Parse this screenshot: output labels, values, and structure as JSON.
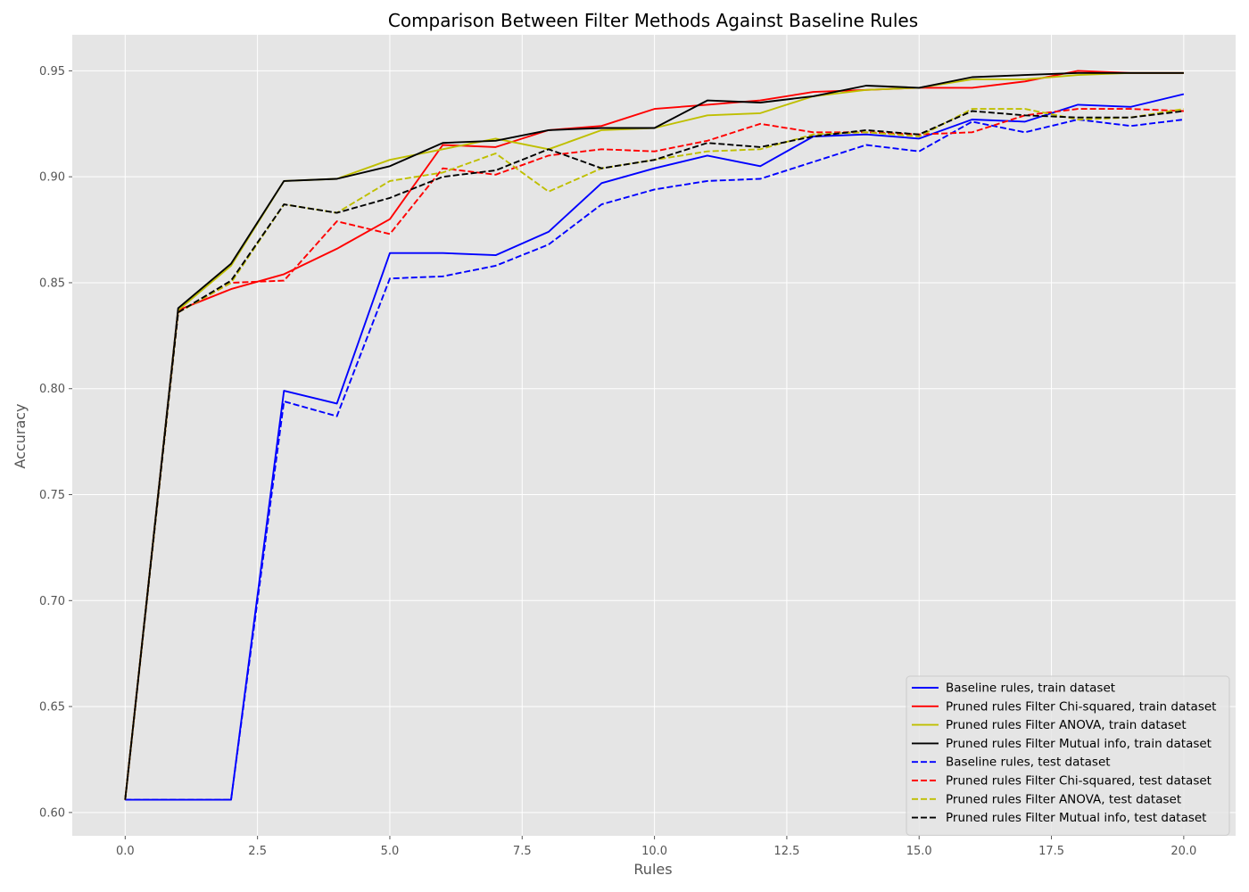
{
  "chart_data": {
    "type": "line",
    "title": "Comparison Between Filter Methods Against Baseline Rules",
    "xlabel": "Rules",
    "ylabel": "Accuracy",
    "xlim": [
      -1,
      20.98
    ],
    "ylim": [
      0.589,
      0.967
    ],
    "xticks": [
      "0.0",
      "2.5",
      "5.0",
      "7.5",
      "10.0",
      "12.5",
      "15.0",
      "17.5",
      "20.0"
    ],
    "yticks": [
      "0.60",
      "0.65",
      "0.70",
      "0.75",
      "0.80",
      "0.85",
      "0.90",
      "0.95"
    ],
    "grid": true,
    "legend_position": "lower-right",
    "x": [
      0,
      1,
      2,
      3,
      4,
      5,
      6,
      7,
      8,
      9,
      10,
      11,
      12,
      13,
      14,
      15,
      16,
      17,
      18,
      19,
      20
    ],
    "series": [
      {
        "name": "Baseline rules, train dataset",
        "color": "#0000ff",
        "dash": "solid",
        "values": [
          0.606,
          0.606,
          0.606,
          0.799,
          0.793,
          0.864,
          0.864,
          0.863,
          0.874,
          0.897,
          0.904,
          0.91,
          0.905,
          0.919,
          0.92,
          0.918,
          0.927,
          0.926,
          0.934,
          0.933,
          0.939
        ]
      },
      {
        "name": "Pruned rules Filter Chi-squared, train dataset",
        "color": "#ff0000",
        "dash": "solid",
        "values": [
          0.606,
          0.837,
          0.847,
          0.854,
          0.866,
          0.88,
          0.915,
          0.914,
          0.922,
          0.924,
          0.932,
          0.934,
          0.936,
          0.94,
          0.941,
          0.942,
          0.942,
          0.945,
          0.95,
          0.949,
          0.949
        ]
      },
      {
        "name": "Pruned rules Filter ANOVA, train dataset",
        "color": "#bfbf00",
        "dash": "solid",
        "values": [
          0.606,
          0.837,
          0.858,
          0.898,
          0.899,
          0.908,
          0.913,
          0.918,
          0.913,
          0.922,
          0.923,
          0.929,
          0.93,
          0.938,
          0.941,
          0.942,
          0.946,
          0.946,
          0.948,
          0.949,
          0.949
        ]
      },
      {
        "name": "Pruned rules Filter Mutual info, train dataset",
        "color": "#000000",
        "dash": "solid",
        "values": [
          0.606,
          0.838,
          0.859,
          0.898,
          0.899,
          0.905,
          0.916,
          0.917,
          0.922,
          0.923,
          0.923,
          0.936,
          0.935,
          0.938,
          0.943,
          0.942,
          0.947,
          0.948,
          0.949,
          0.949,
          0.949
        ]
      },
      {
        "name": "Baseline rules, test dataset",
        "color": "#0000ff",
        "dash": "dashed",
        "values": [
          0.606,
          0.606,
          0.606,
          0.794,
          0.787,
          0.852,
          0.853,
          0.858,
          0.868,
          0.887,
          0.894,
          0.898,
          0.899,
          0.907,
          0.915,
          0.912,
          0.926,
          0.921,
          0.927,
          0.924,
          0.927
        ]
      },
      {
        "name": "Pruned rules Filter Chi-squared, test dataset",
        "color": "#ff0000",
        "dash": "dashed",
        "values": [
          0.606,
          0.836,
          0.85,
          0.851,
          0.879,
          0.873,
          0.904,
          0.901,
          0.91,
          0.913,
          0.912,
          0.917,
          0.925,
          0.921,
          0.921,
          0.92,
          0.921,
          0.929,
          0.932,
          0.932,
          0.931
        ]
      },
      {
        "name": "Pruned rules Filter ANOVA, test dataset",
        "color": "#bfbf00",
        "dash": "dashed",
        "values": [
          0.606,
          0.836,
          0.85,
          0.887,
          0.883,
          0.898,
          0.902,
          0.911,
          0.893,
          0.904,
          0.908,
          0.912,
          0.913,
          0.92,
          0.921,
          0.919,
          0.932,
          0.932,
          0.927,
          0.928,
          0.932
        ]
      },
      {
        "name": "Pruned rules Filter Mutual info, test dataset",
        "color": "#000000",
        "dash": "dashed",
        "values": [
          0.606,
          0.836,
          0.851,
          0.887,
          0.883,
          0.89,
          0.9,
          0.903,
          0.913,
          0.904,
          0.908,
          0.916,
          0.914,
          0.919,
          0.922,
          0.92,
          0.931,
          0.929,
          0.928,
          0.928,
          0.931
        ]
      }
    ]
  }
}
